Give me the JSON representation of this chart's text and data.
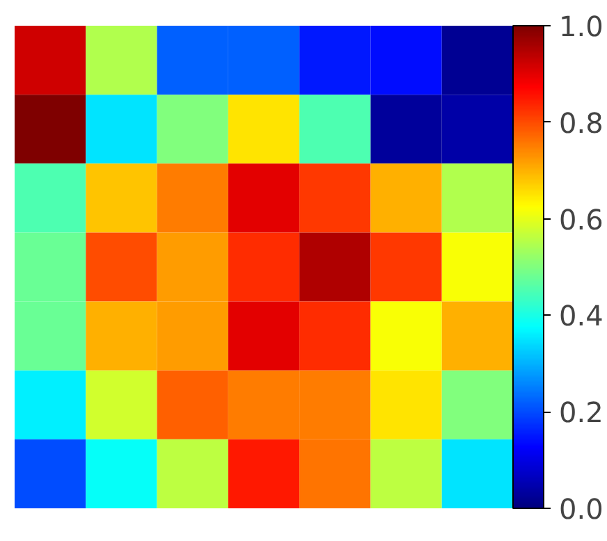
{
  "chart_data": {
    "type": "heatmap",
    "categories": [
      null,
      null,
      null,
      null,
      null,
      null,
      null
    ],
    "y_categories": [
      null,
      null,
      null,
      null,
      null,
      null,
      null
    ],
    "cells": [
      [
        0.92,
        0.55,
        0.22,
        0.22,
        0.15,
        0.14,
        0.02
      ],
      [
        1.0,
        0.35,
        0.5,
        0.65,
        0.45,
        0.03,
        0.04
      ],
      [
        0.45,
        0.68,
        0.75,
        0.9,
        0.82,
        0.7,
        0.55
      ],
      [
        0.48,
        0.8,
        0.72,
        0.83,
        0.95,
        0.82,
        0.62
      ],
      [
        0.48,
        0.7,
        0.72,
        0.9,
        0.83,
        0.62,
        0.7
      ],
      [
        0.36,
        0.58,
        0.78,
        0.75,
        0.75,
        0.65,
        0.5
      ],
      [
        0.2,
        0.38,
        0.56,
        0.85,
        0.76,
        0.56,
        0.35
      ]
    ],
    "clim": [
      0,
      1
    ],
    "cticks": [
      {
        "value": 0,
        "label": "0.0"
      },
      {
        "value": 0.2,
        "label": "0.2"
      },
      {
        "value": 0.4,
        "label": "0.4"
      },
      {
        "value": 0.6,
        "label": "0.6"
      },
      {
        "value": 0.8,
        "label": "0.8"
      },
      {
        "value": 1,
        "label": "1.0"
      }
    ]
  }
}
